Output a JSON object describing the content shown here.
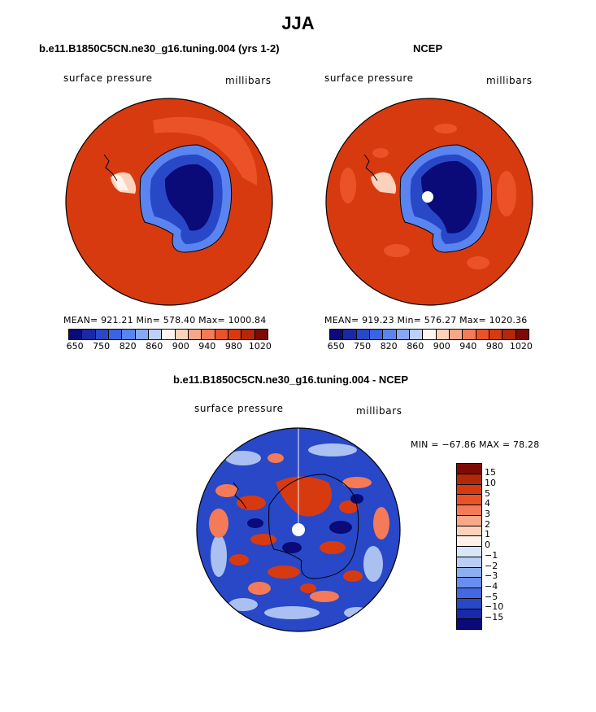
{
  "page_title": "JJA",
  "panels": [
    {
      "title": "b.e11.B1850C5CN.ne30_g16.tuning.004 (yrs 1-2)",
      "left_label": "surface pressure",
      "right_label": "millibars",
      "stats": "MEAN= 921.21  Min= 578.40  Max= 1000.84"
    },
    {
      "title": "NCEP",
      "left_label": "surface pressure",
      "right_label": "millibars",
      "stats": "MEAN= 919.23  Min= 576.27  Max= 1020.36"
    },
    {
      "title": "b.e11.B1850C5CN.ne30_g16.tuning.004 - NCEP",
      "left_label": "surface pressure",
      "right_label": "millibars",
      "stats": "MIN = −67.86 MAX =  78.28"
    }
  ],
  "abs_colorbar": {
    "colors": [
      "#0a0a78",
      "#1a28a8",
      "#2848c8",
      "#3a64e0",
      "#5a84f0",
      "#88a8f4",
      "#bcd0f8",
      "#fff4ee",
      "#fcd2bc",
      "#f8a888",
      "#f47a58",
      "#ec5228",
      "#d83a10",
      "#b42808",
      "#7e0a06"
    ],
    "ticks": [
      "650",
      "750",
      "820",
      "860",
      "900",
      "940",
      "980",
      "1020"
    ]
  },
  "diff_colorbar": {
    "colors": [
      "#7e0a06",
      "#b42808",
      "#d83a10",
      "#ec5228",
      "#f47a58",
      "#f8a888",
      "#fcd2bc",
      "#fff0e8",
      "#d8e6fa",
      "#b8cef6",
      "#8eaef2",
      "#6a8ef0",
      "#4468e0",
      "#2848c8",
      "#1a28a8",
      "#0a0a78"
    ],
    "ticks": [
      "15",
      "10",
      "5",
      "4",
      "3",
      "2",
      "1",
      "0",
      "−1",
      "−2",
      "−3",
      "−4",
      "−5",
      "−10",
      "−15"
    ]
  }
}
